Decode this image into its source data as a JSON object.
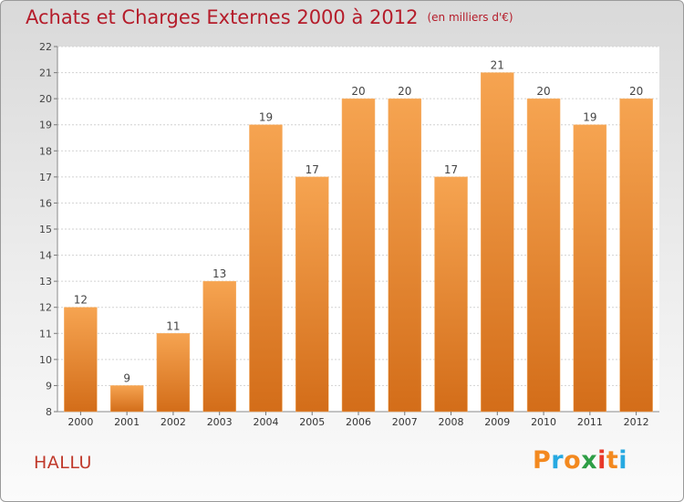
{
  "title": {
    "main": "Achats et Charges Externes 2000 à 2012",
    "unit": "(en milliers d'€)"
  },
  "commune": "HALLU",
  "logo": {
    "text": "Proxiti",
    "colors": [
      "#f3891f",
      "#27a9e1",
      "#f3891f",
      "#2e9e46",
      "#e8392a",
      "#f3891f",
      "#27a9e1"
    ]
  },
  "chart_data": {
    "type": "bar",
    "title": "Achats et Charges Externes 2000 à 2012",
    "subtitle": "(en milliers d'€)",
    "categories": [
      "2000",
      "2001",
      "2002",
      "2003",
      "2004",
      "2005",
      "2006",
      "2007",
      "2008",
      "2009",
      "2010",
      "2011",
      "2012"
    ],
    "values": [
      12,
      9,
      11,
      13,
      19,
      17,
      20,
      20,
      17,
      21,
      20,
      19,
      20
    ],
    "ylim": [
      8,
      22
    ],
    "yticks": [
      8,
      9,
      10,
      11,
      12,
      13,
      14,
      15,
      16,
      17,
      18,
      19,
      20,
      21,
      22
    ],
    "grid": true,
    "data_labels": true,
    "bar_color": "#f0923a",
    "xlabel": "",
    "ylabel": ""
  }
}
